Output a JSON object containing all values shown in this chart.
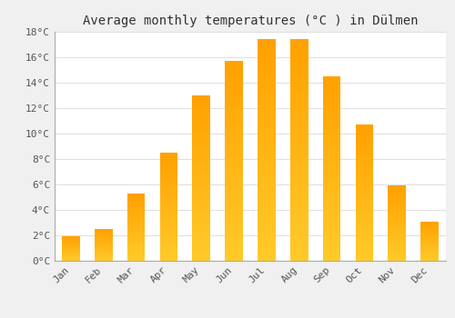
{
  "title": "Average monthly temperatures (°C ) in Dülmen",
  "months": [
    "Jan",
    "Feb",
    "Mar",
    "Apr",
    "May",
    "Jun",
    "Jul",
    "Aug",
    "Sep",
    "Oct",
    "Nov",
    "Dec"
  ],
  "temperatures": [
    1.9,
    2.5,
    5.3,
    8.5,
    13.0,
    15.7,
    17.4,
    17.4,
    14.5,
    10.7,
    5.9,
    3.1
  ],
  "bar_color_bottom": "#FFCA28",
  "bar_color_top": "#FFA000",
  "ylim": [
    0,
    18
  ],
  "yticks": [
    0,
    2,
    4,
    6,
    8,
    10,
    12,
    14,
    16,
    18
  ],
  "ytick_labels": [
    "0°C",
    "2°C",
    "4°C",
    "6°C",
    "8°C",
    "10°C",
    "12°C",
    "14°C",
    "16°C",
    "18°C"
  ],
  "background_color": "#f0f0f0",
  "plot_bg_color": "#ffffff",
  "grid_color": "#e0e0e0",
  "title_fontsize": 10,
  "tick_fontsize": 8,
  "font_family": "monospace",
  "bar_width": 0.55
}
